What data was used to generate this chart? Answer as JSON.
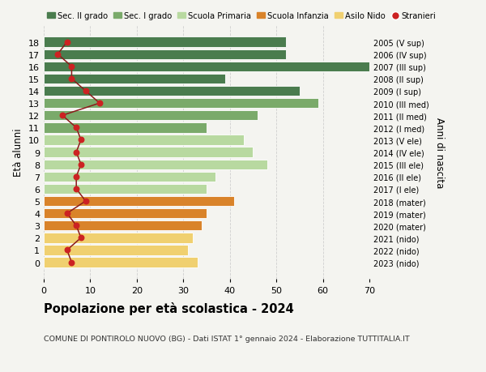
{
  "ages": [
    18,
    17,
    16,
    15,
    14,
    13,
    12,
    11,
    10,
    9,
    8,
    7,
    6,
    5,
    4,
    3,
    2,
    1,
    0
  ],
  "years": [
    "2005 (V sup)",
    "2006 (IV sup)",
    "2007 (III sup)",
    "2008 (II sup)",
    "2009 (I sup)",
    "2010 (III med)",
    "2011 (II med)",
    "2012 (I med)",
    "2013 (V ele)",
    "2014 (IV ele)",
    "2015 (III ele)",
    "2016 (II ele)",
    "2017 (I ele)",
    "2018 (mater)",
    "2019 (mater)",
    "2020 (mater)",
    "2021 (nido)",
    "2022 (nido)",
    "2023 (nido)"
  ],
  "bar_values": [
    52,
    52,
    70,
    39,
    55,
    59,
    46,
    35,
    43,
    45,
    48,
    37,
    35,
    41,
    35,
    34,
    32,
    31,
    33
  ],
  "bar_colors": [
    "#4a7c4e",
    "#4a7c4e",
    "#4a7c4e",
    "#4a7c4e",
    "#4a7c4e",
    "#7aaa6a",
    "#7aaa6a",
    "#7aaa6a",
    "#b8d9a0",
    "#b8d9a0",
    "#b8d9a0",
    "#b8d9a0",
    "#b8d9a0",
    "#d9832a",
    "#d9832a",
    "#d9832a",
    "#f0d070",
    "#f0d070",
    "#f0d070"
  ],
  "stranieri_values": [
    5,
    3,
    6,
    6,
    9,
    12,
    4,
    7,
    8,
    7,
    8,
    7,
    7,
    9,
    5,
    7,
    8,
    5,
    6
  ],
  "title": "Popolazione per età scolastica - 2024",
  "subtitle": "COMUNE DI PONTIROLO NUOVO (BG) - Dati ISTAT 1° gennaio 2024 - Elaborazione TUTTITALIA.IT",
  "ylabel_left": "Età alunni",
  "ylabel_right": "Anni di nascita",
  "xlim": [
    0,
    70
  ],
  "xticks": [
    0,
    10,
    20,
    30,
    40,
    50,
    60,
    70
  ],
  "legend_labels": [
    "Sec. II grado",
    "Sec. I grado",
    "Scuola Primaria",
    "Scuola Infanzia",
    "Asilo Nido",
    "Stranieri"
  ],
  "legend_colors": [
    "#4a7c4e",
    "#7aaa6a",
    "#b8d9a0",
    "#d9832a",
    "#f0d070",
    "#cc2222"
  ],
  "stranieri_color": "#cc2222",
  "line_color": "#8b1a1a",
  "background_color": "#f4f4f0"
}
